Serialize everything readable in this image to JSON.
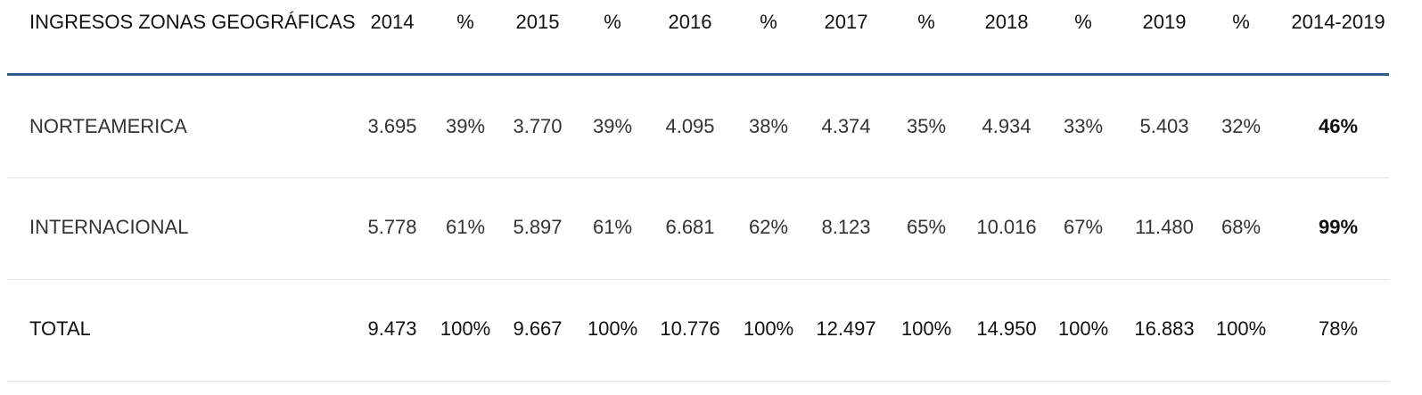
{
  "table": {
    "headers": [
      "INGRESOS ZONAS GEOGRÁFICAS",
      "2014",
      "%",
      "2015",
      "%",
      "2016",
      "%",
      "2017",
      "%",
      "2018",
      "%",
      "2019",
      "%",
      "2014-2019"
    ],
    "rows": [
      {
        "label": "NORTEAMERICA",
        "values": [
          "3.695",
          "39%",
          "3.770",
          "39%",
          "4.095",
          "38%",
          "4.374",
          "35%",
          "4.934",
          "33%",
          "5.403",
          "32%",
          "46%"
        ]
      },
      {
        "label": "INTERNACIONAL",
        "values": [
          "5.778",
          "61%",
          "5.897",
          "61%",
          "6.681",
          "62%",
          "8.123",
          "65%",
          "10.016",
          "67%",
          "11.480",
          "68%",
          "99%"
        ]
      },
      {
        "label": "TOTAL",
        "values": [
          "9.473",
          "100%",
          "9.667",
          "100%",
          "10.776",
          "100%",
          "12.497",
          "100%",
          "14.950",
          "100%",
          "16.883",
          "100%",
          "78%"
        ]
      }
    ]
  },
  "colors": {
    "header_rule": "#2e5f8a",
    "row_rule": "#e2e2e2",
    "text": "#222222"
  }
}
